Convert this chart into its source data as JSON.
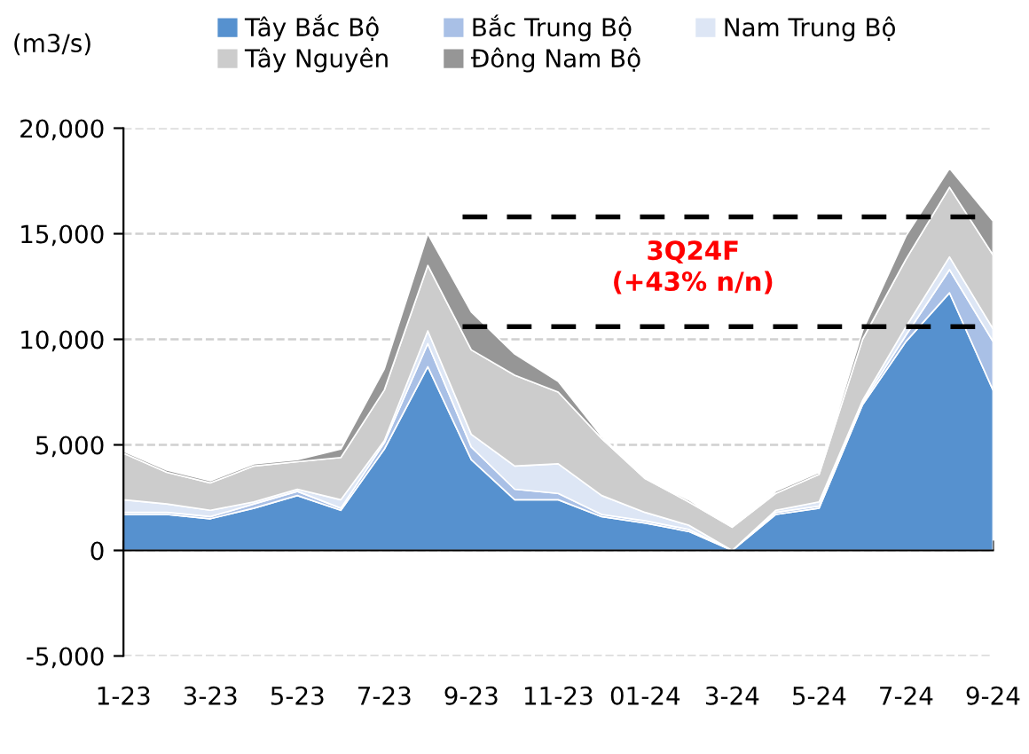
{
  "chart_data": {
    "type": "area",
    "stacked": true,
    "ylabel": "(m3/s)",
    "categories": [
      "1-23",
      null,
      "3-23",
      null,
      "5-23",
      null,
      "7-23",
      null,
      "9-23",
      null,
      "11-23",
      null,
      "01-24",
      null,
      "3-24",
      null,
      "5-24",
      null,
      "7-24",
      null,
      "9-24"
    ],
    "series": [
      {
        "name": "Tây Bắc Bộ",
        "color": "#5691cf",
        "values": [
          1700,
          1700,
          1500,
          2000,
          2600,
          1900,
          4800,
          8700,
          4300,
          2400,
          2400,
          1600,
          1300,
          900,
          0,
          1700,
          2000,
          6900,
          9900,
          12200,
          7600
        ]
      },
      {
        "name": "Bắc Trung Bộ",
        "color": "#a9c0e6",
        "values": [
          100,
          100,
          100,
          200,
          200,
          100,
          300,
          1100,
          600,
          500,
          300,
          100,
          100,
          100,
          0,
          100,
          100,
          100,
          300,
          1100,
          2300
        ]
      },
      {
        "name": "Nam Trung Bộ",
        "color": "#dde6f5",
        "values": [
          600,
          400,
          300,
          100,
          100,
          400,
          100,
          600,
          600,
          1100,
          1400,
          900,
          400,
          200,
          0,
          100,
          200,
          100,
          400,
          600,
          600
        ]
      },
      {
        "name": "Tây Nguyên",
        "color": "#cccccc",
        "values": [
          2200,
          1500,
          1300,
          1700,
          1300,
          2000,
          2400,
          3100,
          4000,
          4300,
          3400,
          2700,
          1600,
          1100,
          1100,
          800,
          1300,
          2900,
          3200,
          3300,
          3500
        ]
      },
      {
        "name": "Đông Nam Bộ",
        "color": "#969696",
        "values": [
          100,
          100,
          100,
          100,
          100,
          400,
          1000,
          1500,
          1800,
          1000,
          500,
          100,
          0,
          100,
          0,
          100,
          100,
          400,
          1100,
          900,
          1600
        ]
      }
    ],
    "ylim": [
      -5000,
      20000
    ],
    "yticks": [
      {
        "value": -5000,
        "label": "-5,000"
      },
      {
        "value": 0,
        "label": "0"
      },
      {
        "value": 5000,
        "label": "5,000"
      },
      {
        "value": 10000,
        "label": "10,000"
      },
      {
        "value": 15000,
        "label": "15,000"
      },
      {
        "value": 20000,
        "label": "20,000"
      }
    ],
    "ref_lines": [
      {
        "axis": "y",
        "value": 15800,
        "label": null,
        "color": "#000000",
        "line_style": "dashed"
      },
      {
        "axis": "y",
        "value": 10600,
        "label": null,
        "color": "#000000",
        "line_style": "dashed"
      }
    ],
    "annotations": [
      "3Q24F\n(+43% n/n)"
    ],
    "grid": "y",
    "legend": "top"
  }
}
